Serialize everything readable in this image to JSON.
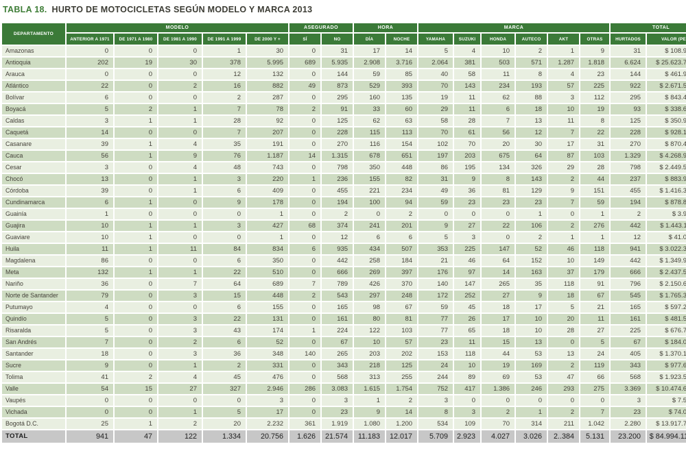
{
  "title": {
    "prefix": "TABLA 18.",
    "text": "HURTO DE MOTOCICLETAS SEGÚN MODELO Y MARCA 2013"
  },
  "colors": {
    "header_green": "#3b7a38",
    "row_light": "#e9efe1",
    "row_dark": "#cedcc2",
    "total_gray": "#c7c7c7",
    "title_green": "#3e7d37"
  },
  "table": {
    "corner_header": "DEPARTAMENTO",
    "groups": [
      {
        "label": "MODELO",
        "span": 5
      },
      {
        "label": "ASEGURADO",
        "span": 2
      },
      {
        "label": "HORA",
        "span": 2
      },
      {
        "label": "MARCA",
        "span": 6
      },
      {
        "label": "TOTAL",
        "span": 2
      }
    ],
    "columns": [
      "ANTERIOR A 1971",
      "DE 1971 A 1980",
      "DE 1981 A 1990",
      "DE 1991 A 1999",
      "DE 2000 Y +",
      "SÍ",
      "NO",
      "DÍA",
      "NOCHE",
      "YAMAHA",
      "SUZUKI",
      "HONDA",
      "AUTECO",
      "AKT",
      "OTRAS",
      "HURTADOS",
      "VALOR (PESOS)"
    ],
    "rows": [
      {
        "departamento": "Amazonas",
        "values": [
          "0",
          "0",
          "0",
          "1",
          "30",
          "0",
          "31",
          "17",
          "14",
          "5",
          "4",
          "10",
          "2",
          "1",
          "9",
          "31",
          "$ 108.998.407"
        ]
      },
      {
        "departamento": "Antioquia",
        "values": [
          "202",
          "19",
          "30",
          "378",
          "5.995",
          "689",
          "5.935",
          "2.908",
          "3.716",
          "2.064",
          "381",
          "503",
          "571",
          "1.287",
          "1.818",
          "6.624",
          "$ 25.623.736.802"
        ]
      },
      {
        "departamento": "Arauca",
        "values": [
          "0",
          "0",
          "0",
          "12",
          "132",
          "0",
          "144",
          "59",
          "85",
          "40",
          "58",
          "11",
          "8",
          "4",
          "23",
          "144",
          "$ 461.920.000"
        ]
      },
      {
        "departamento": "Atlántico",
        "values": [
          "22",
          "0",
          "2",
          "16",
          "882",
          "49",
          "873",
          "529",
          "393",
          "70",
          "143",
          "234",
          "193",
          "57",
          "225",
          "922",
          "$ 2.671.515.851"
        ]
      },
      {
        "departamento": "Bolívar",
        "values": [
          "6",
          "0",
          "0",
          "2",
          "287",
          "0",
          "295",
          "160",
          "135",
          "19",
          "11",
          "62",
          "88",
          "3",
          "112",
          "295",
          "$ 843.438.001"
        ]
      },
      {
        "departamento": "Boyacá",
        "values": [
          "5",
          "2",
          "1",
          "7",
          "78",
          "2",
          "91",
          "33",
          "60",
          "29",
          "11",
          "6",
          "18",
          "10",
          "19",
          "93",
          "$ 338.669.000"
        ]
      },
      {
        "departamento": "Caldas",
        "values": [
          "3",
          "1",
          "1",
          "28",
          "92",
          "0",
          "125",
          "62",
          "63",
          "58",
          "28",
          "7",
          "13",
          "11",
          "8",
          "125",
          "$ 350.950.000"
        ]
      },
      {
        "departamento": "Caquetá",
        "values": [
          "14",
          "0",
          "0",
          "7",
          "207",
          "0",
          "228",
          "115",
          "113",
          "70",
          "61",
          "56",
          "12",
          "7",
          "22",
          "228",
          "$ 928.152.000"
        ]
      },
      {
        "departamento": "Casanare",
        "values": [
          "39",
          "1",
          "4",
          "35",
          "191",
          "0",
          "270",
          "116",
          "154",
          "102",
          "70",
          "20",
          "30",
          "17",
          "31",
          "270",
          "$ 870.461.901"
        ]
      },
      {
        "departamento": "Cauca",
        "values": [
          "56",
          "1",
          "9",
          "76",
          "1.187",
          "14",
          "1.315",
          "678",
          "651",
          "197",
          "203",
          "675",
          "64",
          "87",
          "103",
          "1.329",
          "$ 4.268.970.018"
        ]
      },
      {
        "departamento": "Cesar",
        "values": [
          "3",
          "0",
          "4",
          "48",
          "743",
          "0",
          "798",
          "350",
          "448",
          "86",
          "195",
          "134",
          "326",
          "29",
          "28",
          "798",
          "$ 2.449.507.801"
        ]
      },
      {
        "departamento": "Chocó",
        "values": [
          "13",
          "0",
          "1",
          "3",
          "220",
          "1",
          "236",
          "155",
          "82",
          "31",
          "9",
          "8",
          "143",
          "2",
          "44",
          "237",
          "$ 883.920.000"
        ]
      },
      {
        "departamento": "Córdoba",
        "values": [
          "39",
          "0",
          "1",
          "6",
          "409",
          "0",
          "455",
          "221",
          "234",
          "49",
          "36",
          "81",
          "129",
          "9",
          "151",
          "455",
          "$ 1.416.307.001"
        ]
      },
      {
        "departamento": "Cundinamarca",
        "values": [
          "6",
          "1",
          "0",
          "9",
          "178",
          "0",
          "194",
          "100",
          "94",
          "59",
          "23",
          "23",
          "23",
          "7",
          "59",
          "194",
          "$ 878.800.000"
        ]
      },
      {
        "departamento": "Guainía",
        "values": [
          "1",
          "0",
          "0",
          "0",
          "1",
          "0",
          "2",
          "0",
          "2",
          "0",
          "0",
          "0",
          "1",
          "0",
          "1",
          "2",
          "$ 3.950.000"
        ]
      },
      {
        "departamento": "Guajira",
        "values": [
          "10",
          "1",
          "1",
          "3",
          "427",
          "68",
          "374",
          "241",
          "201",
          "9",
          "27",
          "22",
          "106",
          "2",
          "276",
          "442",
          "$ 1.443.118.010"
        ]
      },
      {
        "departamento": "Guaviare",
        "values": [
          "10",
          "1",
          "0",
          "0",
          "1",
          "0",
          "12",
          "6",
          "6",
          "5",
          "3",
          "0",
          "2",
          "1",
          "1",
          "12",
          "$ 41.000.000"
        ]
      },
      {
        "departamento": "Huila",
        "values": [
          "11",
          "1",
          "11",
          "84",
          "834",
          "6",
          "935",
          "434",
          "507",
          "353",
          "225",
          "147",
          "52",
          "46",
          "118",
          "941",
          "$ 3.022.391.587"
        ]
      },
      {
        "departamento": "Magdalena",
        "values": [
          "86",
          "0",
          "0",
          "6",
          "350",
          "0",
          "442",
          "258",
          "184",
          "21",
          "46",
          "64",
          "152",
          "10",
          "149",
          "442",
          "$ 1.349.997.460"
        ]
      },
      {
        "departamento": "Meta",
        "values": [
          "132",
          "1",
          "1",
          "22",
          "510",
          "0",
          "666",
          "269",
          "397",
          "176",
          "97",
          "14",
          "163",
          "37",
          "179",
          "666",
          "$ 2.437.516.013"
        ]
      },
      {
        "departamento": "Nariño",
        "values": [
          "36",
          "0",
          "7",
          "64",
          "689",
          "7",
          "789",
          "426",
          "370",
          "140",
          "147",
          "265",
          "35",
          "118",
          "91",
          "796",
          "$ 2.150.696.716"
        ]
      },
      {
        "departamento": "Norte de Santander",
        "values": [
          "79",
          "0",
          "3",
          "15",
          "448",
          "2",
          "543",
          "297",
          "248",
          "172",
          "252",
          "27",
          "9",
          "18",
          "67",
          "545",
          "$ 1.765.376.079"
        ]
      },
      {
        "departamento": "Putumayo",
        "values": [
          "4",
          "0",
          "0",
          "6",
          "155",
          "0",
          "165",
          "98",
          "67",
          "59",
          "45",
          "18",
          "17",
          "5",
          "21",
          "165",
          "$ 597.210.000"
        ]
      },
      {
        "departamento": "Quindío",
        "values": [
          "5",
          "0",
          "3",
          "22",
          "131",
          "0",
          "161",
          "80",
          "81",
          "77",
          "26",
          "17",
          "10",
          "20",
          "11",
          "161",
          "$ 481.560.000"
        ]
      },
      {
        "departamento": "Risaralda",
        "values": [
          "5",
          "0",
          "3",
          "43",
          "174",
          "1",
          "224",
          "122",
          "103",
          "77",
          "65",
          "18",
          "10",
          "28",
          "27",
          "225",
          "$ 676.741.000"
        ]
      },
      {
        "departamento": "San Andrés",
        "values": [
          "7",
          "0",
          "2",
          "6",
          "52",
          "0",
          "67",
          "10",
          "57",
          "23",
          "11",
          "15",
          "13",
          "0",
          "5",
          "67",
          "$ 184.050.001"
        ]
      },
      {
        "departamento": "Santander",
        "values": [
          "18",
          "0",
          "3",
          "36",
          "348",
          "140",
          "265",
          "203",
          "202",
          "153",
          "118",
          "44",
          "53",
          "13",
          "24",
          "405",
          "$ 1.370.166.000"
        ]
      },
      {
        "departamento": "Sucre",
        "values": [
          "9",
          "0",
          "1",
          "2",
          "331",
          "0",
          "343",
          "218",
          "125",
          "24",
          "10",
          "19",
          "169",
          "2",
          "119",
          "343",
          "$ 977.605.005"
        ]
      },
      {
        "departamento": "Tolima",
        "values": [
          "41",
          "2",
          "4",
          "45",
          "476",
          "0",
          "568",
          "313",
          "255",
          "244",
          "89",
          "69",
          "53",
          "47",
          "66",
          "568",
          "$ 1.923.516.828"
        ]
      },
      {
        "departamento": "Valle",
        "values": [
          "54",
          "15",
          "27",
          "327",
          "2.946",
          "286",
          "3.083",
          "1.615",
          "1.754",
          "752",
          "417",
          "1.386",
          "246",
          "293",
          "275",
          "3.369",
          "$ 10.474.619.528"
        ]
      },
      {
        "departamento": "Vaupés",
        "values": [
          "0",
          "0",
          "0",
          "0",
          "3",
          "0",
          "3",
          "1",
          "2",
          "3",
          "0",
          "0",
          "0",
          "0",
          "0",
          "3",
          "$ 7.500.000"
        ]
      },
      {
        "departamento": "Vichada",
        "values": [
          "0",
          "0",
          "1",
          "5",
          "17",
          "0",
          "23",
          "9",
          "14",
          "8",
          "3",
          "2",
          "1",
          "2",
          "7",
          "23",
          "$ 74.000.000"
        ]
      },
      {
        "departamento": "Bogotá D.C.",
        "values": [
          "25",
          "1",
          "2",
          "20",
          "2.232",
          "361",
          "1.919",
          "1.080",
          "1.200",
          "534",
          "109",
          "70",
          "314",
          "211",
          "1.042",
          "2.280",
          "$ 13.917.757.029"
        ]
      }
    ],
    "total_row": {
      "departamento": "TOTAL",
      "values": [
        "941",
        "47",
        "122",
        "1.334",
        "20.756",
        "1.626",
        "21.574",
        "11.183",
        "12.017",
        "5.709",
        "2.923",
        "4.027",
        "3.026",
        "2..384",
        "5.131",
        "23.200",
        "$ 84.994.118.038"
      ]
    }
  }
}
